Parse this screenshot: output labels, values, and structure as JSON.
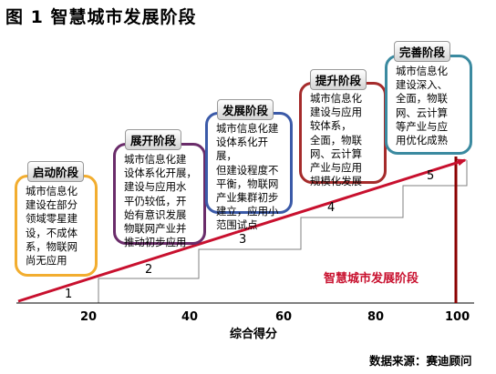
{
  "title": "图 1  智慧城市发展阶段",
  "stages": [
    {
      "label": "启动阶段",
      "number": "1",
      "lines": [
        "城市信息化",
        "建设在部分",
        "领域零星建",
        "设，不成体",
        "系，物联网",
        "尚无应用"
      ]
    },
    {
      "label": "展开阶段",
      "number": "2",
      "lines": [
        "城市信息化建",
        "设体系化开展，",
        "建设与应用水",
        "平仍较低，开",
        "始有意识发展",
        "物联网产业并",
        "推动初步应用"
      ]
    },
    {
      "label": "发展阶段",
      "number": "3",
      "lines": [
        "城市信息化建",
        "设体系化开展，",
        "但建设程度不",
        "平衡，物联网",
        "产业集群初步",
        "建立，应用小",
        "范围试点"
      ]
    },
    {
      "label": "提升阶段",
      "number": "4",
      "lines": [
        "城市信息化",
        "建设与应用",
        "较体系，",
        "全面，物联",
        "网、云计算",
        "产业与应用",
        "规模化发展"
      ]
    },
    {
      "label": "完善阶段",
      "number": "5",
      "lines": [
        "城市信息化",
        "建设深入、",
        "全面，物联",
        "网、云计算",
        "等产业与应",
        "用优化成熟"
      ]
    }
  ],
  "x_axis": {
    "ticks": [
      "20",
      "40",
      "60",
      "80",
      "100"
    ],
    "label": "综合得分"
  },
  "trend_label": "智慧城市发展阶段",
  "source": "数据来源：赛迪顾问",
  "colors": {
    "arrow": "#c8102e",
    "box1": "#f2ad2f",
    "box2": "#6a2c6a",
    "box3": "#3b5aa8",
    "box4": "#a52b2b",
    "box5": "#3b8aa0"
  }
}
